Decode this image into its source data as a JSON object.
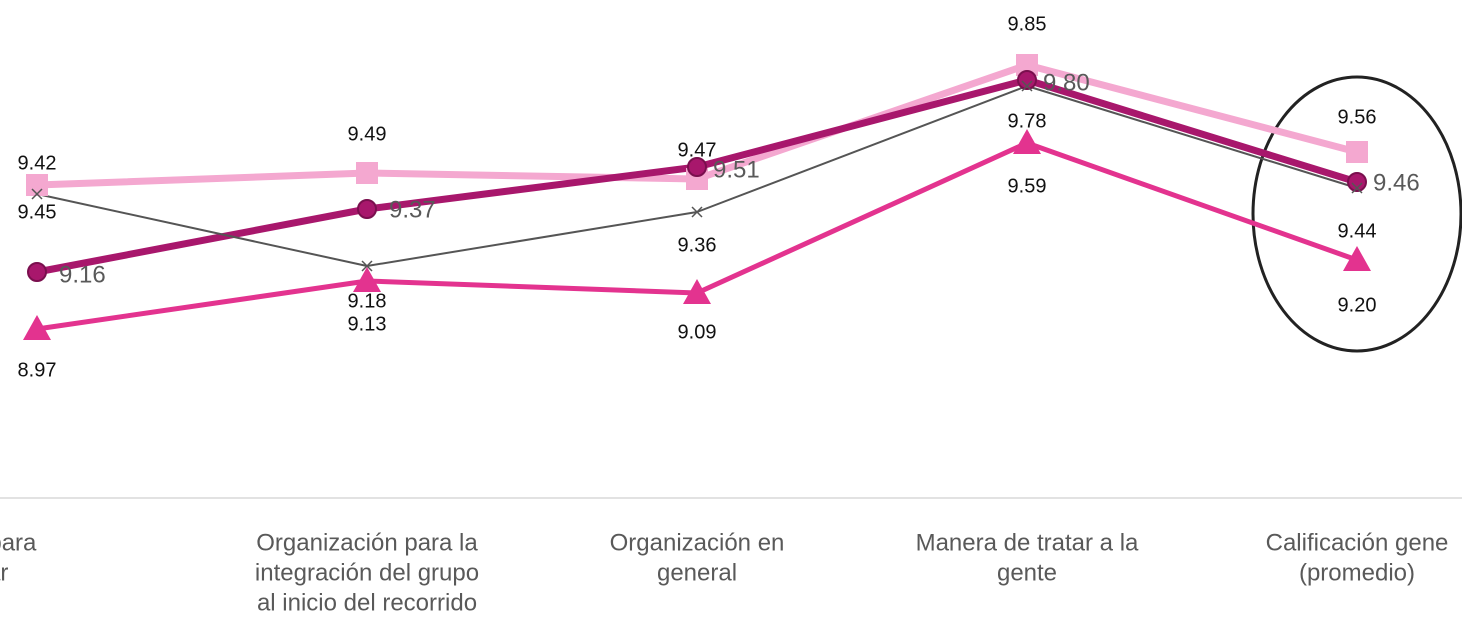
{
  "chart_data": {
    "type": "line",
    "categories": [
      [
        "alidad para",
        "iniciar"
      ],
      [
        "Organización para la",
        "integración del grupo",
        "al inicio del recorrido"
      ],
      [
        "Organización en",
        "general"
      ],
      [
        "Manera de tratar a la",
        "gente"
      ],
      [
        "Calificación gene",
        "(promedio)"
      ]
    ],
    "series": [
      {
        "color": "#f4a8d0",
        "marker": "square",
        "values": [
          9.45,
          9.49,
          9.47,
          9.85,
          9.56
        ],
        "value_labels": [
          "9.45",
          "9.49",
          "9.47",
          "9.85",
          "9.56"
        ]
      },
      {
        "color": "#a8176c",
        "marker": "circle",
        "values": [
          9.16,
          9.37,
          9.51,
          9.8,
          9.46
        ],
        "value_labels": [
          "9.16",
          "9.37",
          "9.51",
          "9.80",
          "9.46"
        ]
      },
      {
        "color": "#555555",
        "marker": "x",
        "values": [
          9.42,
          9.18,
          9.36,
          9.78,
          9.44
        ],
        "value_labels": [
          "9.42",
          "9.18",
          "9.36",
          "9.78",
          "9.44"
        ]
      },
      {
        "color": "#e3338f",
        "marker": "triangle",
        "values": [
          8.97,
          9.13,
          9.09,
          9.59,
          9.2
        ],
        "value_labels": [
          "8.97",
          "9.13",
          "9.09",
          "9.59",
          "9.20"
        ]
      }
    ],
    "ylim": [
      8.6,
      10.0
    ]
  }
}
